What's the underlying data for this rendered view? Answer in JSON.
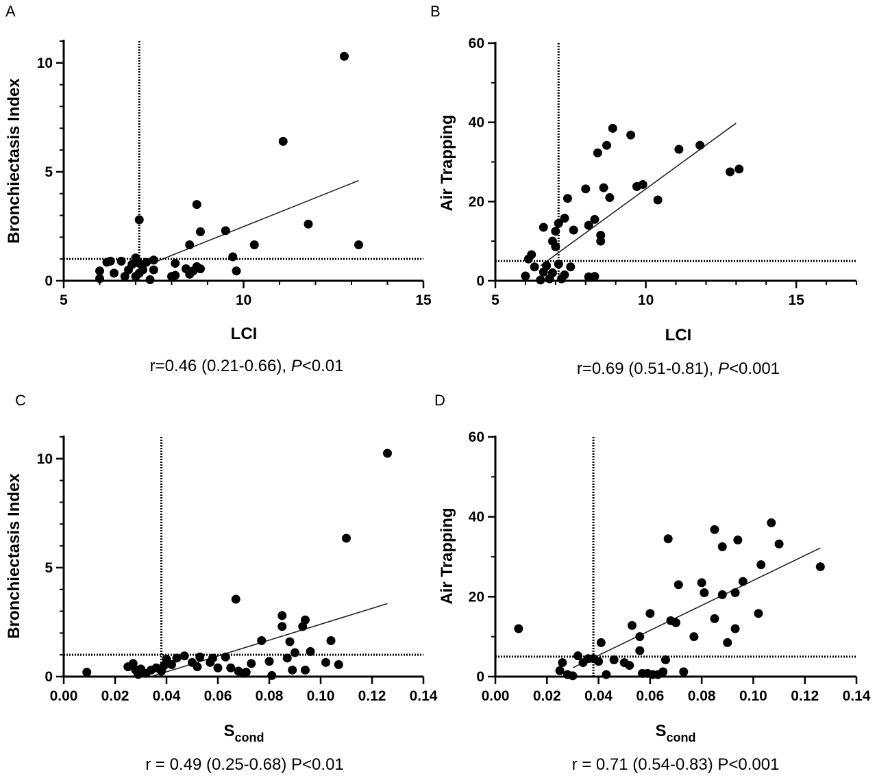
{
  "chart_data": [
    {
      "panel": "A",
      "type": "scatter",
      "title": "",
      "xlabel": "LCI",
      "xlabel_sub": "",
      "ylabel": "Bronchiectasis Index",
      "xlim": [
        5,
        15
      ],
      "ylim": [
        0,
        11
      ],
      "xticks": [
        5,
        10,
        15
      ],
      "xtick_labels": [
        "5",
        "10",
        "15"
      ],
      "yticks": [
        0,
        5,
        10
      ],
      "ytick_labels": [
        "0",
        "5",
        "10"
      ],
      "x_minor": 1,
      "y_minor": 1,
      "vline": 7.1,
      "hline": 1.0,
      "fit": [
        [
          7.6,
          0.9
        ],
        [
          13.2,
          4.6
        ]
      ],
      "caption": {
        "pre": "r=0.46 (0.21-0.66), ",
        "p_letter": "P",
        "post": "<0.01"
      },
      "points": [
        [
          6.0,
          0.1
        ],
        [
          6.0,
          0.45
        ],
        [
          6.2,
          0.85
        ],
        [
          6.3,
          0.9
        ],
        [
          6.4,
          0.35
        ],
        [
          6.6,
          0.9
        ],
        [
          6.7,
          0.2
        ],
        [
          6.8,
          0.5
        ],
        [
          6.9,
          0.75
        ],
        [
          7.0,
          0.2
        ],
        [
          7.0,
          1.05
        ],
        [
          7.1,
          0.8
        ],
        [
          7.1,
          0.35
        ],
        [
          7.1,
          2.8
        ],
        [
          7.2,
          0.5
        ],
        [
          7.3,
          0.85
        ],
        [
          7.4,
          0.05
        ],
        [
          7.5,
          0.5
        ],
        [
          7.5,
          0.95
        ],
        [
          8.0,
          0.2
        ],
        [
          8.1,
          0.8
        ],
        [
          8.1,
          0.25
        ],
        [
          8.4,
          0.55
        ],
        [
          8.5,
          0.3
        ],
        [
          8.5,
          1.65
        ],
        [
          8.6,
          0.45
        ],
        [
          8.7,
          0.65
        ],
        [
          8.7,
          3.5
        ],
        [
          8.8,
          2.25
        ],
        [
          8.8,
          0.55
        ],
        [
          9.5,
          2.3
        ],
        [
          9.7,
          1.1
        ],
        [
          9.8,
          0.45
        ],
        [
          10.3,
          1.65
        ],
        [
          11.1,
          6.4
        ],
        [
          11.8,
          2.6
        ],
        [
          12.8,
          10.3
        ],
        [
          13.2,
          1.65
        ]
      ]
    },
    {
      "panel": "B",
      "type": "scatter",
      "title": "",
      "xlabel": "LCI",
      "xlabel_sub": "",
      "ylabel": "Air Trapping",
      "xlim": [
        5,
        17
      ],
      "ylim": [
        0,
        60
      ],
      "xticks": [
        5,
        10,
        15
      ],
      "xtick_labels": [
        "5",
        "10",
        "15"
      ],
      "yticks": [
        0,
        20,
        40,
        60
      ],
      "ytick_labels": [
        "0",
        "20",
        "40",
        "60"
      ],
      "x_minor": 1,
      "y_minor": 10,
      "vline": 7.1,
      "hline": 5,
      "fit": [
        [
          6.5,
          3.8
        ],
        [
          13.0,
          39.8
        ]
      ],
      "caption": {
        "pre": "r=0.69 (0.51-0.81), ",
        "p_letter": "P",
        "post": "<0.001"
      },
      "points": [
        [
          6.0,
          1.2
        ],
        [
          6.1,
          5.5
        ],
        [
          6.2,
          6.6
        ],
        [
          6.3,
          3.5
        ],
        [
          6.5,
          0.2
        ],
        [
          6.6,
          2.2
        ],
        [
          6.6,
          13.5
        ],
        [
          6.7,
          3.8
        ],
        [
          6.8,
          0.5
        ],
        [
          6.9,
          10.0
        ],
        [
          6.9,
          2.0
        ],
        [
          7.0,
          12.5
        ],
        [
          7.0,
          8.6
        ],
        [
          7.1,
          4.2
        ],
        [
          7.1,
          14.5
        ],
        [
          7.2,
          0.5
        ],
        [
          7.3,
          15.8
        ],
        [
          7.3,
          1.5
        ],
        [
          7.4,
          20.8
        ],
        [
          7.5,
          3.5
        ],
        [
          7.6,
          12.8
        ],
        [
          8.0,
          23.2
        ],
        [
          8.1,
          1.0
        ],
        [
          8.1,
          14.0
        ],
        [
          8.3,
          1.1
        ],
        [
          8.3,
          15.5
        ],
        [
          8.4,
          32.3
        ],
        [
          8.5,
          11.5
        ],
        [
          8.5,
          10.0
        ],
        [
          8.6,
          23.5
        ],
        [
          8.7,
          34.2
        ],
        [
          8.8,
          21.0
        ],
        [
          8.9,
          38.5
        ],
        [
          9.5,
          36.8
        ],
        [
          9.7,
          23.8
        ],
        [
          9.9,
          24.3
        ],
        [
          10.4,
          20.4
        ],
        [
          11.1,
          33.2
        ],
        [
          11.8,
          34.2
        ],
        [
          12.8,
          27.5
        ],
        [
          13.1,
          28.2
        ]
      ]
    },
    {
      "panel": "C",
      "type": "scatter",
      "title": "",
      "xlabel": "S",
      "xlabel_sub": "cond",
      "ylabel": "Bronchiectasis Index",
      "xlim": [
        0,
        0.14
      ],
      "ylim": [
        0,
        11
      ],
      "xticks": [
        0,
        0.02,
        0.04,
        0.06,
        0.08,
        0.1,
        0.12,
        0.14
      ],
      "xtick_labels": [
        "0.00",
        "0.02",
        "0.04",
        "0.06",
        "0.08",
        "0.10",
        "0.12",
        "0.14"
      ],
      "yticks": [
        0,
        5,
        10
      ],
      "ytick_labels": [
        "0",
        "5",
        "10"
      ],
      "x_minor": 0,
      "y_minor": 1,
      "vline": 0.038,
      "hline": 1.0,
      "fit": [
        [
          0.034,
          0.0
        ],
        [
          0.126,
          3.35
        ]
      ],
      "caption": {
        "pre": "r = 0.49 (0.25-0.68) P<0.01",
        "p_letter": "",
        "post": ""
      },
      "points": [
        [
          0.009,
          0.2
        ],
        [
          0.025,
          0.45
        ],
        [
          0.027,
          0.6
        ],
        [
          0.028,
          0.3
        ],
        [
          0.029,
          0.1
        ],
        [
          0.03,
          0.35
        ],
        [
          0.032,
          0.15
        ],
        [
          0.034,
          0.3
        ],
        [
          0.036,
          0.4
        ],
        [
          0.038,
          0.25
        ],
        [
          0.039,
          0.5
        ],
        [
          0.04,
          0.8
        ],
        [
          0.042,
          0.55
        ],
        [
          0.044,
          0.85
        ],
        [
          0.047,
          0.95
        ],
        [
          0.05,
          0.65
        ],
        [
          0.052,
          0.45
        ],
        [
          0.053,
          0.9
        ],
        [
          0.057,
          0.65
        ],
        [
          0.058,
          0.85
        ],
        [
          0.06,
          0.4
        ],
        [
          0.063,
          0.9
        ],
        [
          0.065,
          0.4
        ],
        [
          0.067,
          3.55
        ],
        [
          0.068,
          0.25
        ],
        [
          0.07,
          0.15
        ],
        [
          0.071,
          0.2
        ],
        [
          0.073,
          0.6
        ],
        [
          0.077,
          1.65
        ],
        [
          0.08,
          0.7
        ],
        [
          0.081,
          0.05
        ],
        [
          0.085,
          2.8
        ],
        [
          0.085,
          2.3
        ],
        [
          0.087,
          0.85
        ],
        [
          0.088,
          1.6
        ],
        [
          0.089,
          0.3
        ],
        [
          0.09,
          1.1
        ],
        [
          0.093,
          2.3
        ],
        [
          0.094,
          2.6
        ],
        [
          0.094,
          0.3
        ],
        [
          0.096,
          1.15
        ],
        [
          0.102,
          0.65
        ],
        [
          0.104,
          1.65
        ],
        [
          0.107,
          0.55
        ],
        [
          0.11,
          6.35
        ],
        [
          0.126,
          10.25
        ]
      ]
    },
    {
      "panel": "D",
      "type": "scatter",
      "title": "",
      "xlabel": "S",
      "xlabel_sub": "cond",
      "ylabel": "Air Trapping",
      "xlim": [
        0,
        0.14
      ],
      "ylim": [
        0,
        60
      ],
      "xticks": [
        0,
        0.02,
        0.04,
        0.06,
        0.08,
        0.1,
        0.12,
        0.14
      ],
      "xtick_labels": [
        "0.00",
        "0.02",
        "0.04",
        "0.06",
        "0.08",
        "0.10",
        "0.12",
        "0.14"
      ],
      "yticks": [
        0,
        20,
        40,
        60
      ],
      "ytick_labels": [
        "0",
        "20",
        "40",
        "60"
      ],
      "x_minor": 0,
      "y_minor": 10,
      "vline": 0.038,
      "hline": 5,
      "fit": [
        [
          0.03,
          2.2
        ],
        [
          0.126,
          32.2
        ]
      ],
      "caption": {
        "pre": "r = 0.71 (0.54-0.83) P<0.001",
        "p_letter": "",
        "post": ""
      },
      "points": [
        [
          0.009,
          12.0
        ],
        [
          0.025,
          1.5
        ],
        [
          0.026,
          3.5
        ],
        [
          0.028,
          0.5
        ],
        [
          0.03,
          0.2
        ],
        [
          0.032,
          5.2
        ],
        [
          0.034,
          3.5
        ],
        [
          0.036,
          4.5
        ],
        [
          0.038,
          4.5
        ],
        [
          0.04,
          3.8
        ],
        [
          0.041,
          8.5
        ],
        [
          0.043,
          0.5
        ],
        [
          0.046,
          4.2
        ],
        [
          0.05,
          3.5
        ],
        [
          0.052,
          2.8
        ],
        [
          0.053,
          12.8
        ],
        [
          0.056,
          10.0
        ],
        [
          0.056,
          6.5
        ],
        [
          0.057,
          0.8
        ],
        [
          0.059,
          0.8
        ],
        [
          0.06,
          15.8
        ],
        [
          0.061,
          0.5
        ],
        [
          0.063,
          0.5
        ],
        [
          0.065,
          1.2
        ],
        [
          0.066,
          4.2
        ],
        [
          0.067,
          34.5
        ],
        [
          0.068,
          14.0
        ],
        [
          0.07,
          13.5
        ],
        [
          0.071,
          23.0
        ],
        [
          0.073,
          1.2
        ],
        [
          0.077,
          10.0
        ],
        [
          0.08,
          23.5
        ],
        [
          0.081,
          21.0
        ],
        [
          0.085,
          36.8
        ],
        [
          0.085,
          14.5
        ],
        [
          0.088,
          20.5
        ],
        [
          0.088,
          32.5
        ],
        [
          0.09,
          8.5
        ],
        [
          0.093,
          21.0
        ],
        [
          0.093,
          12.0
        ],
        [
          0.094,
          34.2
        ],
        [
          0.096,
          23.8
        ],
        [
          0.102,
          15.8
        ],
        [
          0.103,
          28.0
        ],
        [
          0.107,
          38.5
        ],
        [
          0.11,
          33.2
        ],
        [
          0.126,
          27.5
        ]
      ]
    }
  ]
}
